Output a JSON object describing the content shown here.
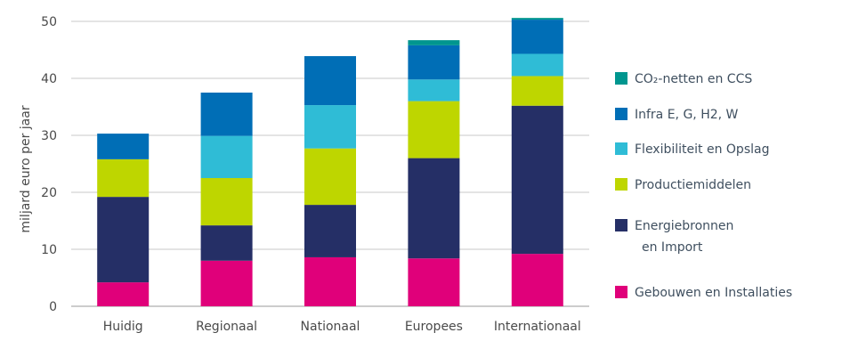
{
  "chart_data": {
    "type": "bar",
    "stacked": true,
    "categories": [
      "Huidig",
      "Regionaal",
      "Nationaal",
      "Europees",
      "Internationaal"
    ],
    "ylabel": "miljard euro per jaar",
    "ylim": [
      0,
      50
    ],
    "yticks": [
      0,
      10,
      20,
      30,
      40,
      50
    ],
    "grid": true,
    "legend_position": "right",
    "series": [
      {
        "name": "Gebouwen en Installaties",
        "color": "#e0007a",
        "values": [
          4.2,
          8.0,
          8.6,
          8.4,
          9.2
        ]
      },
      {
        "name": "Energiebronnen en Import",
        "color": "#252f66",
        "values": [
          15.0,
          6.2,
          9.2,
          17.6,
          26.0
        ]
      },
      {
        "name": "Productiemiddelen",
        "color": "#bed600",
        "values": [
          6.6,
          8.3,
          9.9,
          10.0,
          5.2
        ]
      },
      {
        "name": "Flexibiliteit en Opslag",
        "color": "#2fbcd6",
        "values": [
          0.0,
          7.4,
          7.6,
          3.8,
          3.9
        ]
      },
      {
        "name": "Infra E, G, H2, W",
        "color": "#006eb6",
        "values": [
          4.5,
          7.6,
          8.6,
          6.0,
          6.0
        ]
      },
      {
        "name": "CO₂-netten en CCS",
        "color": "#00968f",
        "values": [
          0.0,
          0.0,
          0.0,
          0.9,
          0.3
        ]
      }
    ],
    "legend": [
      {
        "lines": [
          "CO₂-netten en CCS"
        ],
        "color": "#00968f"
      },
      {
        "lines": [
          "Infra E, G, H2, W"
        ],
        "color": "#006eb6"
      },
      {
        "lines": [
          "Flexibiliteit en Opslag"
        ],
        "color": "#2fbcd6"
      },
      {
        "lines": [
          "Productiemiddelen"
        ],
        "color": "#bed600"
      },
      {
        "lines": [
          "Energiebronnen",
          "en Import"
        ],
        "color": "#252f66"
      },
      {
        "lines": [
          "Gebouwen en Installaties"
        ],
        "color": "#e0007a"
      }
    ]
  }
}
